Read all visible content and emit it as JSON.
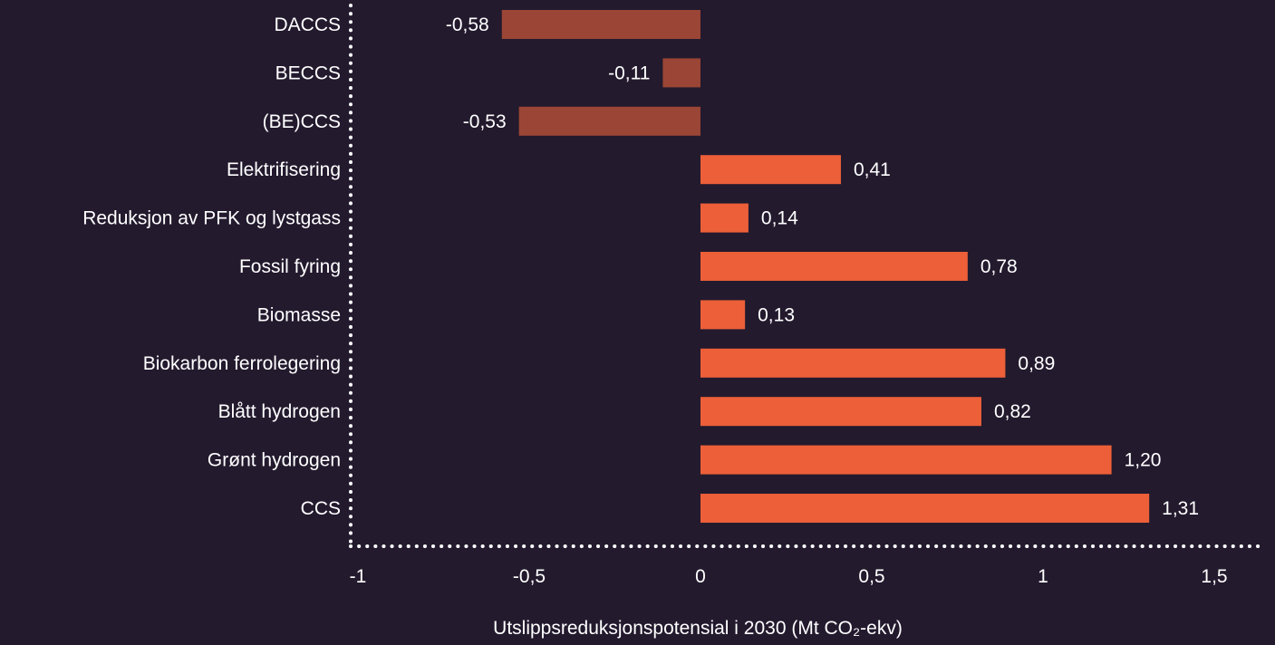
{
  "chart_data": {
    "type": "bar",
    "orientation": "horizontal",
    "categories": [
      "DACCS",
      "BECCS",
      "(BE)CCS",
      "Elektrifisering",
      "Reduksjon av PFK og lystgass",
      "Fossil fyring",
      "Biomasse",
      "Biokarbon ferrolegering",
      "Blått hydrogen",
      "Grønt hydrogen",
      "CCS"
    ],
    "values": [
      -0.58,
      -0.11,
      -0.53,
      0.41,
      0.14,
      0.78,
      0.13,
      0.89,
      0.82,
      1.2,
      1.31
    ],
    "value_labels": [
      "-0,58",
      "-0,11",
      "-0,53",
      "0,41",
      "0,14",
      "0,78",
      "0,13",
      "0,89",
      "0,82",
      "1,20",
      "1,31"
    ],
    "xlim": [
      -1,
      1.5
    ],
    "xticks": [
      -1,
      -0.5,
      0,
      0.5,
      1,
      1.5
    ],
    "xtick_labels": [
      "-1",
      "-0,5",
      "0",
      "0,5",
      "1",
      "1,5"
    ],
    "xlabel": "Utslippsreduksjonspotensial i 2030 (Mt CO₂-ekv)",
    "ylabel": "",
    "title": "",
    "grid": false,
    "colors": {
      "negative": "#9a4535",
      "positive": "#ec5f38",
      "background": "#231a2e",
      "axis": "#ffffff",
      "text": "#ffffff"
    }
  }
}
